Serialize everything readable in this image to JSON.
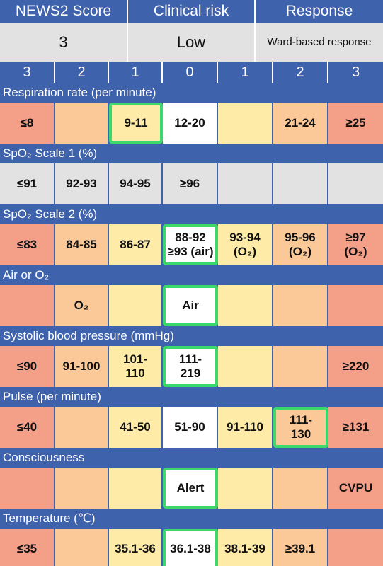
{
  "header": {
    "score_title": "NEWS2 Score",
    "risk_title": "Clinical risk",
    "response_title": "Response"
  },
  "summary": {
    "score": "3",
    "risk": "Low",
    "response": "Ward-based response"
  },
  "score_columns": [
    "3",
    "2",
    "1",
    "0",
    "1",
    "2",
    "3"
  ],
  "params": [
    {
      "label": "Respiration rate (per minute)",
      "cells": [
        {
          "text": "≤8",
          "color": "red"
        },
        {
          "text": "",
          "color": "orange"
        },
        {
          "text": "9-11",
          "color": "yellow",
          "selected": true
        },
        {
          "text": "12-20",
          "color": "white"
        },
        {
          "text": "",
          "color": "yellow"
        },
        {
          "text": "21-24",
          "color": "orange"
        },
        {
          "text": "≥25",
          "color": "red"
        }
      ]
    },
    {
      "label": "SpO₂ Scale 1 (%)",
      "cells": [
        {
          "text": "≤91",
          "color": "grey"
        },
        {
          "text": "92-93",
          "color": "grey"
        },
        {
          "text": "94-95",
          "color": "grey"
        },
        {
          "text": "≥96",
          "color": "grey"
        },
        {
          "text": "",
          "color": "grey"
        },
        {
          "text": "",
          "color": "grey"
        },
        {
          "text": "",
          "color": "grey"
        }
      ]
    },
    {
      "label": "SpO₂ Scale 2 (%)",
      "cells": [
        {
          "text": "≤83",
          "color": "red"
        },
        {
          "text": "84-85",
          "color": "orange"
        },
        {
          "text": "86-87",
          "color": "yellow"
        },
        {
          "text": "88-92\n≥93 (air)",
          "color": "white",
          "selected": true
        },
        {
          "text": "93-94\n(O₂)",
          "color": "yellow"
        },
        {
          "text": "95-96\n(O₂)",
          "color": "orange"
        },
        {
          "text": "≥97\n(O₂)",
          "color": "red"
        }
      ]
    },
    {
      "label": "Air or O₂",
      "cells": [
        {
          "text": "",
          "color": "red"
        },
        {
          "text": "O₂",
          "color": "orange"
        },
        {
          "text": "",
          "color": "yellow"
        },
        {
          "text": "Air",
          "color": "white",
          "selected": true
        },
        {
          "text": "",
          "color": "yellow"
        },
        {
          "text": "",
          "color": "orange"
        },
        {
          "text": "",
          "color": "red"
        }
      ]
    },
    {
      "label": "Systolic blood pressure (mmHg)",
      "cells": [
        {
          "text": "≤90",
          "color": "red"
        },
        {
          "text": "91-100",
          "color": "orange"
        },
        {
          "text": "101-\n110",
          "color": "yellow"
        },
        {
          "text": "111-\n219",
          "color": "white",
          "selected": true
        },
        {
          "text": "",
          "color": "yellow"
        },
        {
          "text": "",
          "color": "orange"
        },
        {
          "text": "≥220",
          "color": "red"
        }
      ]
    },
    {
      "label": "Pulse (per minute)",
      "cells": [
        {
          "text": "≤40",
          "color": "red"
        },
        {
          "text": "",
          "color": "orange"
        },
        {
          "text": "41-50",
          "color": "yellow"
        },
        {
          "text": "51-90",
          "color": "white"
        },
        {
          "text": "91-110",
          "color": "yellow"
        },
        {
          "text": "111-\n130",
          "color": "orange",
          "selected": true
        },
        {
          "text": "≥131",
          "color": "red"
        }
      ]
    },
    {
      "label": "Consciousness",
      "cells": [
        {
          "text": "",
          "color": "red"
        },
        {
          "text": "",
          "color": "orange"
        },
        {
          "text": "",
          "color": "yellow"
        },
        {
          "text": "Alert",
          "color": "white",
          "selected": true
        },
        {
          "text": "",
          "color": "yellow"
        },
        {
          "text": "",
          "color": "orange"
        },
        {
          "text": "CVPU",
          "color": "red"
        }
      ]
    },
    {
      "label": "Temperature (℃)",
      "cells": [
        {
          "text": "≤35",
          "color": "red"
        },
        {
          "text": "",
          "color": "orange"
        },
        {
          "text": "35.1-36",
          "color": "yellow"
        },
        {
          "text": "36.1-38",
          "color": "white",
          "selected": true
        },
        {
          "text": "38.1-39",
          "color": "yellow"
        },
        {
          "text": "≥39.1",
          "color": "orange"
        },
        {
          "text": "",
          "color": "red"
        }
      ]
    }
  ],
  "colors": {
    "header_blue": "#3f62ad",
    "selected_border": "#3bd96b",
    "red": "#f49f88",
    "orange": "#fbc897",
    "yellow": "#fdeba7",
    "grey": "#e2e2e2"
  }
}
